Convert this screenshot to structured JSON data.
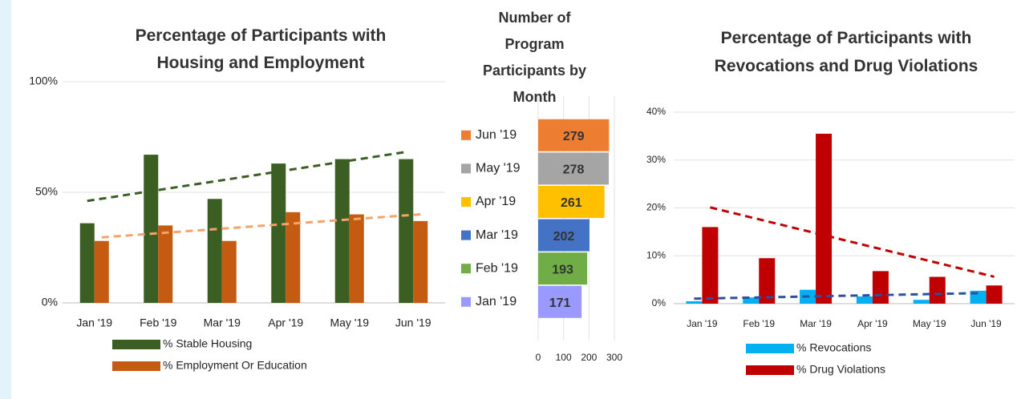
{
  "chart_data": [
    {
      "type": "bar",
      "title": "Percentage of Participants with Housing and Employment",
      "categories": [
        "Jan '19",
        "Feb '19",
        "Mar '19",
        "Apr '19",
        "May '19",
        "Jun '19"
      ],
      "series": [
        {
          "name": "% Stable Housing",
          "color": "#3b5e23",
          "trend_color": "#3b5e23",
          "values": [
            36,
            67,
            47,
            63,
            65,
            65
          ]
        },
        {
          "name": "% Employment Or Education",
          "color": "#c55a11",
          "trend_color": "#f4a36a",
          "values": [
            28,
            35,
            28,
            41,
            40,
            37
          ]
        }
      ],
      "ylim": [
        0,
        100
      ],
      "yticks": [
        {
          "value": 0,
          "label": "0%"
        },
        {
          "value": 50,
          "label": "50%"
        },
        {
          "value": 100,
          "label": "100%"
        }
      ],
      "grid": true,
      "trendline": true,
      "legend": "bottom"
    },
    {
      "type": "hbar",
      "title": "Number of Program Participants by Month",
      "categories": [
        "Jun '19",
        "May '19",
        "Apr '19",
        "Mar '19",
        "Feb '19",
        "Jan '19"
      ],
      "values": [
        279,
        278,
        261,
        202,
        193,
        171
      ],
      "colors": [
        "#ed7d31",
        "#a5a5a5",
        "#ffc000",
        "#4472c4",
        "#70ad47",
        "#9999ff"
      ],
      "xlim": [
        0,
        300
      ],
      "xticks": [
        0,
        100,
        200,
        300
      ],
      "grid": true,
      "legend": "left"
    },
    {
      "type": "bar",
      "title": "Percentage of Participants with Revocations and Drug Violations",
      "categories": [
        "Jan '19",
        "Feb '19",
        "Mar '19",
        "Apr '19",
        "May '19",
        "Jun '19"
      ],
      "series": [
        {
          "name": "% Revocations",
          "color": "#00b0f0",
          "trend_color": "#2f4f9f",
          "values": [
            0.5,
            1.3,
            2.9,
            1.5,
            0.8,
            2.7
          ]
        },
        {
          "name": "% Drug Violations",
          "color": "#c00000",
          "trend_color": "#c00000",
          "values": [
            16,
            9.5,
            35.5,
            6.8,
            5.6,
            3.8
          ]
        }
      ],
      "ylim": [
        0,
        40
      ],
      "yticks": [
        {
          "value": 0,
          "label": "0%"
        },
        {
          "value": 10,
          "label": "10%"
        },
        {
          "value": 20,
          "label": "20%"
        },
        {
          "value": 30,
          "label": "30%"
        },
        {
          "value": 40,
          "label": "40%"
        }
      ],
      "grid": true,
      "trendline": true,
      "legend": "bottom"
    }
  ]
}
